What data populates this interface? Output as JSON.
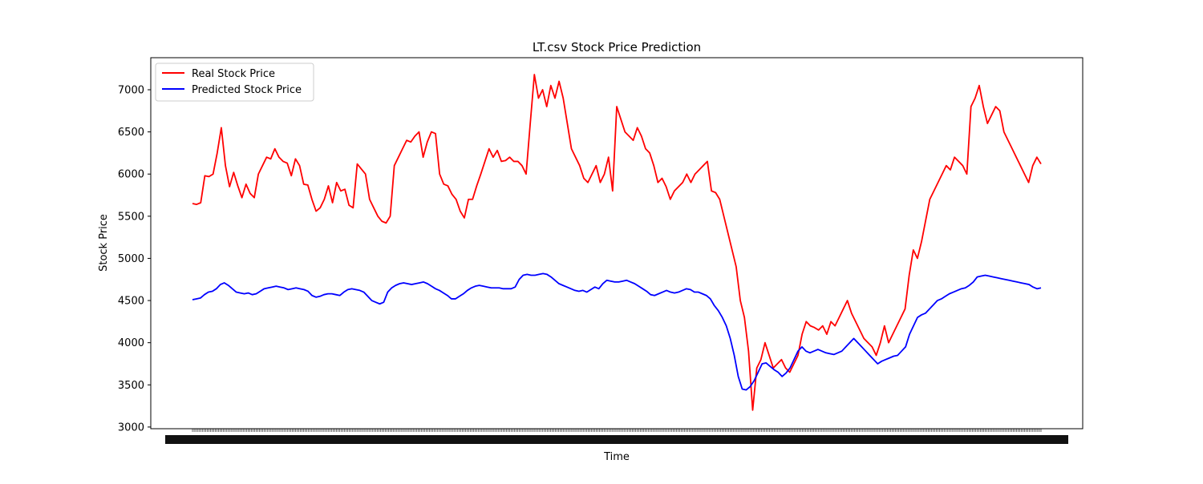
{
  "chart_data": {
    "type": "line",
    "title": "LT.csv Stock Price Prediction",
    "xlabel": "Time",
    "ylabel": "Stock Price",
    "ylim": [
      2980,
      7380
    ],
    "yticks": [
      3000,
      3500,
      4000,
      4500,
      5000,
      5500,
      6000,
      6500,
      7000
    ],
    "x_tick_count": 520,
    "legend_position": "upper-left",
    "grid": false,
    "series": [
      {
        "name": "Real Stock Price",
        "color": "#ff0000",
        "values": [
          5650,
          5640,
          5660,
          5980,
          5970,
          6000,
          6250,
          6550,
          6100,
          5850,
          6020,
          5860,
          5720,
          5880,
          5770,
          5720,
          6000,
          6100,
          6200,
          6180,
          6300,
          6200,
          6150,
          6130,
          5980,
          6180,
          6100,
          5880,
          5870,
          5700,
          5560,
          5600,
          5700,
          5860,
          5660,
          5900,
          5800,
          5820,
          5630,
          5600,
          6120,
          6060,
          6000,
          5700,
          5600,
          5500,
          5440,
          5420,
          5500,
          6100,
          6200,
          6300,
          6400,
          6380,
          6450,
          6500,
          6200,
          6380,
          6500,
          6480,
          6000,
          5880,
          5860,
          5760,
          5700,
          5560,
          5480,
          5700,
          5700,
          5860,
          6000,
          6150,
          6300,
          6200,
          6280,
          6150,
          6160,
          6200,
          6150,
          6150,
          6100,
          6000,
          6600,
          7180,
          6900,
          7000,
          6800,
          7050,
          6900,
          7100,
          6900,
          6600,
          6300,
          6200,
          6100,
          5950,
          5900,
          6000,
          6100,
          5900,
          6000,
          6200,
          5800,
          6800,
          6650,
          6500,
          6450,
          6400,
          6550,
          6450,
          6300,
          6250,
          6100,
          5900,
          5950,
          5850,
          5700,
          5800,
          5850,
          5900,
          6000,
          5900,
          6000,
          6050,
          6100,
          6150,
          5800,
          5780,
          5700,
          5500,
          5300,
          5100,
          4900,
          4500,
          4300,
          3900,
          3200,
          3700,
          3800,
          4000,
          3850,
          3700,
          3750,
          3800,
          3700,
          3650,
          3750,
          3850,
          4100,
          4250,
          4200,
          4180,
          4150,
          4200,
          4100,
          4250,
          4200,
          4300,
          4400,
          4500,
          4350,
          4250,
          4150,
          4050,
          4000,
          3950,
          3850,
          4000,
          4200,
          4000,
          4100,
          4200,
          4300,
          4400,
          4800,
          5100,
          5000,
          5200,
          5450,
          5700,
          5800,
          5900,
          6000,
          6100,
          6050,
          6200,
          6150,
          6100,
          6000,
          6800,
          6900,
          7050,
          6800,
          6600,
          6700,
          6800,
          6750,
          6500,
          6400,
          6300,
          6200,
          6100,
          6000,
          5900,
          6100,
          6200,
          6120
        ]
      },
      {
        "name": "Predicted Stock Price",
        "color": "#0000ff",
        "values": [
          4510,
          4520,
          4530,
          4570,
          4600,
          4610,
          4640,
          4690,
          4710,
          4680,
          4640,
          4600,
          4590,
          4580,
          4590,
          4570,
          4580,
          4610,
          4640,
          4650,
          4660,
          4670,
          4660,
          4650,
          4630,
          4640,
          4650,
          4640,
          4630,
          4610,
          4560,
          4540,
          4550,
          4570,
          4580,
          4580,
          4570,
          4560,
          4600,
          4630,
          4640,
          4630,
          4620,
          4600,
          4550,
          4500,
          4480,
          4460,
          4480,
          4600,
          4650,
          4680,
          4700,
          4710,
          4700,
          4690,
          4700,
          4710,
          4720,
          4700,
          4670,
          4640,
          4620,
          4590,
          4560,
          4520,
          4520,
          4550,
          4580,
          4620,
          4650,
          4670,
          4680,
          4670,
          4660,
          4650,
          4650,
          4650,
          4640,
          4640,
          4640,
          4660,
          4750,
          4800,
          4810,
          4800,
          4800,
          4810,
          4820,
          4810,
          4780,
          4740,
          4700,
          4680,
          4660,
          4640,
          4620,
          4610,
          4620,
          4600,
          4630,
          4660,
          4640,
          4700,
          4740,
          4730,
          4720,
          4720,
          4730,
          4740,
          4720,
          4700,
          4670,
          4640,
          4610,
          4570,
          4560,
          4580,
          4600,
          4620,
          4600,
          4590,
          4600,
          4620,
          4640,
          4630,
          4600,
          4600,
          4580,
          4560,
          4520,
          4440,
          4380,
          4300,
          4200,
          4050,
          3850,
          3600,
          3450,
          3440,
          3480,
          3550,
          3650,
          3750,
          3760,
          3720,
          3680,
          3650,
          3600,
          3640,
          3700,
          3800,
          3900,
          3950,
          3900,
          3880,
          3900,
          3920,
          3900,
          3880,
          3870,
          3860,
          3880,
          3900,
          3950,
          4000,
          4050,
          4000,
          3950,
          3900,
          3850,
          3800,
          3750,
          3780,
          3800,
          3820,
          3840,
          3850,
          3900,
          3950,
          4100,
          4200,
          4300,
          4330,
          4350,
          4400,
          4450,
          4500,
          4520,
          4550,
          4580,
          4600,
          4620,
          4640,
          4650,
          4680,
          4720,
          4780,
          4790,
          4800,
          4790,
          4780,
          4770,
          4760,
          4750,
          4740,
          4730,
          4720,
          4710,
          4700,
          4690,
          4660,
          4640,
          4650
        ]
      }
    ]
  }
}
